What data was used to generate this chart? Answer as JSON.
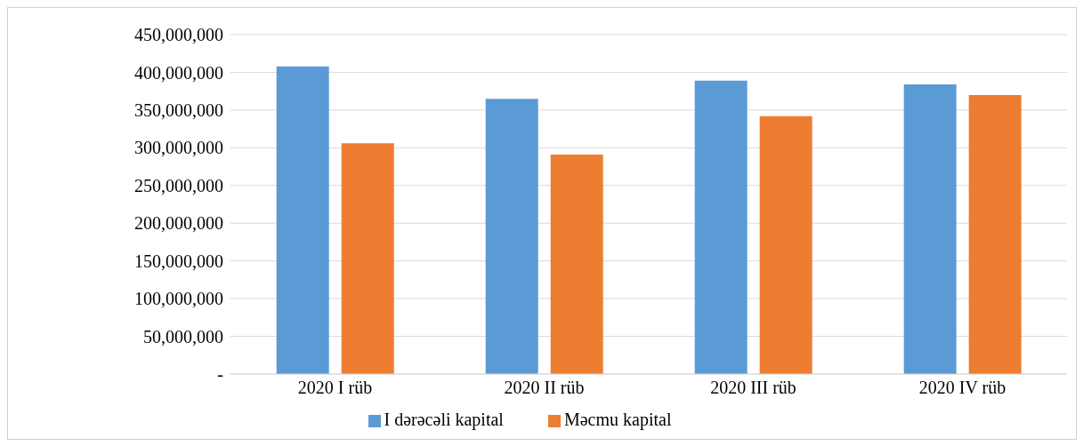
{
  "chart_data": {
    "type": "bar",
    "categories": [
      "2020 I rüb",
      "2020 II rüb",
      "2020 III rüb",
      "2020 IV rüb"
    ],
    "series": [
      {
        "name": "I dərəcəli kapital",
        "color": "#5b9bd5",
        "values": [
          408000000,
          365000000,
          389000000,
          384000000
        ]
      },
      {
        "name": "Məcmu kapital",
        "color": "#ed7d31",
        "values": [
          306000000,
          291000000,
          342000000,
          370000000
        ]
      }
    ],
    "ylim": [
      0,
      450000000
    ],
    "yticks": [
      {
        "value": 0,
        "label": "-"
      },
      {
        "value": 50000000,
        "label": "50,000,000"
      },
      {
        "value": 100000000,
        "label": "100,000,000"
      },
      {
        "value": 150000000,
        "label": "150,000,000"
      },
      {
        "value": 200000000,
        "label": "200,000,000"
      },
      {
        "value": 250000000,
        "label": "250,000,000"
      },
      {
        "value": 300000000,
        "label": "300,000,000"
      },
      {
        "value": 350000000,
        "label": "350,000,000"
      },
      {
        "value": 400000000,
        "label": "400,000,000"
      },
      {
        "value": 450000000,
        "label": "450,000,000"
      }
    ],
    "grid": "y",
    "legend": "bottom"
  }
}
